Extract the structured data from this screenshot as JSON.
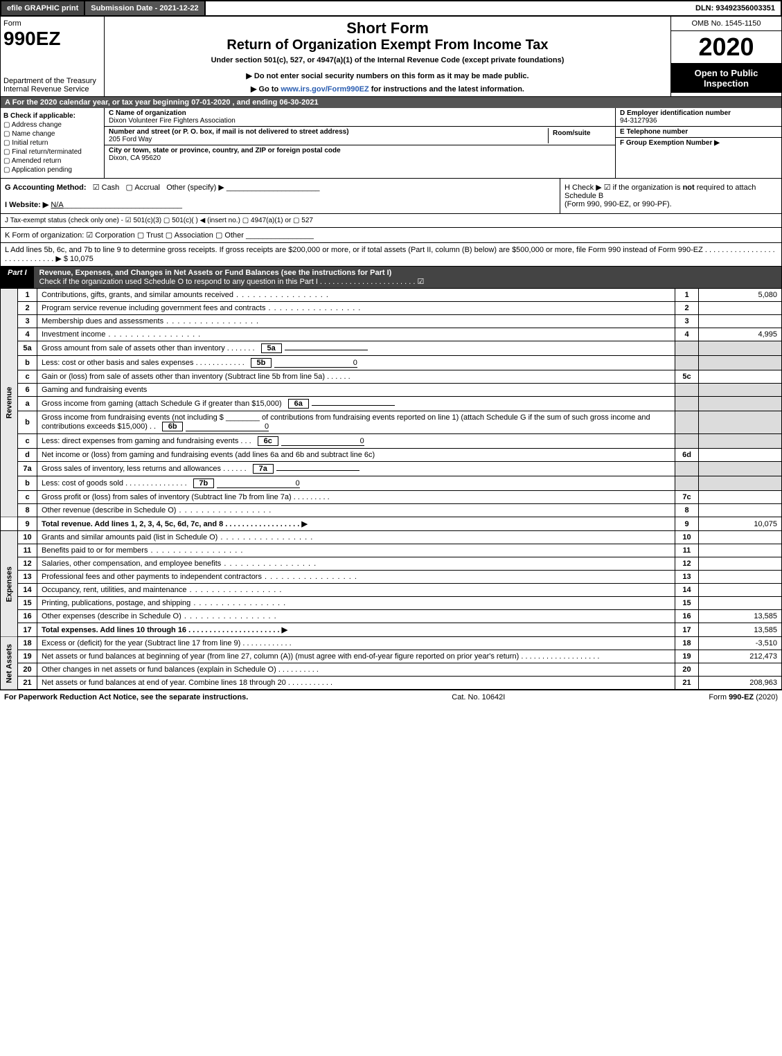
{
  "topbar": {
    "efile": "efile GRAPHIC print",
    "submission": "Submission Date - 2021-12-22",
    "dln_label": "DLN:",
    "dln": "93492356003351"
  },
  "header": {
    "form_word": "Form",
    "form_no": "990EZ",
    "dept": "Department of the Treasury",
    "irs": "Internal Revenue Service",
    "short": "Short Form",
    "title": "Return of Organization Exempt From Income Tax",
    "subtitle": "Under section 501(c), 527, or 4947(a)(1) of the Internal Revenue Code (except private foundations)",
    "donot": "▶ Do not enter social security numbers on this form as it may be made public.",
    "goto_pre": "▶ Go to ",
    "goto_link": "www.irs.gov/Form990EZ",
    "goto_post": " for instructions and the latest information.",
    "omb": "OMB No. 1545-1150",
    "year": "2020",
    "inspect1": "Open to Public",
    "inspect2": "Inspection"
  },
  "period": "A For the 2020 calendar year, or tax year beginning 07-01-2020 , and ending 06-30-2021",
  "boxB": {
    "heading": "B Check if applicable:",
    "opts": [
      "Address change",
      "Name change",
      "Initial return",
      "Final return/terminated",
      "Amended return",
      "Application pending"
    ]
  },
  "boxC": {
    "c_label": "C Name of organization",
    "name": "Dixon Volunteer Fire Fighters Association",
    "street_label": "Number and street (or P. O. box, if mail is not delivered to street address)",
    "street": "205 Ford Way",
    "room_label": "Room/suite",
    "city_label": "City or town, state or province, country, and ZIP or foreign postal code",
    "city": "Dixon, CA  95620"
  },
  "boxD": {
    "d_label": "D Employer identification number",
    "ein": "94-3127936",
    "e_label": "E Telephone number",
    "f_label": "F Group Exemption Number   ▶"
  },
  "lineG": {
    "label": "G Accounting Method:",
    "cash": "☑ Cash",
    "accrual": "▢ Accrual",
    "other": "Other (specify) ▶"
  },
  "lineH": {
    "text1": "H  Check ▶  ☑  if the organization is ",
    "not": "not",
    "text2": " required to attach Schedule B",
    "text3": "(Form 990, 990-EZ, or 990-PF)."
  },
  "lineI": {
    "label": "I Website: ▶",
    "value": "N/A"
  },
  "lineJ": "J Tax-exempt status (check only one) - ☑ 501(c)(3)  ▢ 501(c)(  ) ◀ (insert no.)  ▢ 4947(a)(1) or  ▢ 527",
  "lineK": "K Form of organization:   ☑ Corporation   ▢ Trust   ▢ Association   ▢ Other",
  "lineL": {
    "text": "L Add lines 5b, 6c, and 7b to line 9 to determine gross receipts. If gross receipts are $200,000 or more, or if total assets (Part II, column (B) below) are $500,000 or more, file Form 990 instead of Form 990-EZ  .  .  .  .  .  .  .  .  .  .  .  .  .  .  .  .  .  .  .  .  .  .  .  .  .  .  .  .  .  ▶ $",
    "amount": "10,075"
  },
  "part1": {
    "label": "Part I",
    "title": "Revenue, Expenses, and Changes in Net Assets or Fund Balances (see the instructions for Part I)",
    "check": "Check if the organization used Schedule O to respond to any question in this Part I  .  .  .  .  .  .  .  .  .  .  .  .  .  .  .  .  .  .  .  .  .  .  .  ☑"
  },
  "sidelabels": {
    "rev": "Revenue",
    "exp": "Expenses",
    "net": "Net Assets"
  },
  "lines": {
    "1": {
      "d": "Contributions, gifts, grants, and similar amounts received",
      "n": "1",
      "v": "5,080"
    },
    "2": {
      "d": "Program service revenue including government fees and contracts",
      "n": "2",
      "v": ""
    },
    "3": {
      "d": "Membership dues and assessments",
      "n": "3",
      "v": ""
    },
    "4": {
      "d": "Investment income",
      "n": "4",
      "v": "4,995"
    },
    "5a": {
      "d": "Gross amount from sale of assets other than inventory",
      "sb": "5a",
      "sv": ""
    },
    "5b": {
      "d": "Less: cost or other basis and sales expenses",
      "sb": "5b",
      "sv": "0"
    },
    "5c": {
      "d": "Gain or (loss) from sale of assets other than inventory (Subtract line 5b from line 5a)",
      "n": "5c",
      "v": ""
    },
    "6": {
      "d": "Gaming and fundraising events"
    },
    "6a": {
      "d": "Gross income from gaming (attach Schedule G if greater than $15,000)",
      "sb": "6a",
      "sv": ""
    },
    "6b": {
      "d1": "Gross income from fundraising events (not including $",
      "d2": "of contributions from fundraising events reported on line 1) (attach Schedule G if the sum of such gross income and contributions exceeds $15,000)",
      "sb": "6b",
      "sv": "0"
    },
    "6c": {
      "d": "Less: direct expenses from gaming and fundraising events",
      "sb": "6c",
      "sv": "0"
    },
    "6d": {
      "d": "Net income or (loss) from gaming and fundraising events (add lines 6a and 6b and subtract line 6c)",
      "n": "6d",
      "v": ""
    },
    "7a": {
      "d": "Gross sales of inventory, less returns and allowances",
      "sb": "7a",
      "sv": ""
    },
    "7b": {
      "d": "Less: cost of goods sold",
      "sb": "7b",
      "sv": "0"
    },
    "7c": {
      "d": "Gross profit or (loss) from sales of inventory (Subtract line 7b from line 7a)",
      "n": "7c",
      "v": ""
    },
    "8": {
      "d": "Other revenue (describe in Schedule O)",
      "n": "8",
      "v": ""
    },
    "9": {
      "d": "Total revenue. Add lines 1, 2, 3, 4, 5c, 6d, 7c, and 8   .  .  .  .  .  .  .  .  .  .  .  .  .  .  .  .  .  .  ▶",
      "n": "9",
      "v": "10,075",
      "bold": true
    },
    "10": {
      "d": "Grants and similar amounts paid (list in Schedule O)",
      "n": "10",
      "v": ""
    },
    "11": {
      "d": "Benefits paid to or for members",
      "n": "11",
      "v": ""
    },
    "12": {
      "d": "Salaries, other compensation, and employee benefits",
      "n": "12",
      "v": ""
    },
    "13": {
      "d": "Professional fees and other payments to independent contractors",
      "n": "13",
      "v": ""
    },
    "14": {
      "d": "Occupancy, rent, utilities, and maintenance",
      "n": "14",
      "v": ""
    },
    "15": {
      "d": "Printing, publications, postage, and shipping",
      "n": "15",
      "v": ""
    },
    "16": {
      "d": "Other expenses (describe in Schedule O)",
      "n": "16",
      "v": "13,585"
    },
    "17": {
      "d": "Total expenses. Add lines 10 through 16   .  .  .  .  .  .  .  .  .  .  .  .  .  .  .  .  .  .  .  .  .  .  ▶",
      "n": "17",
      "v": "13,585",
      "bold": true
    },
    "18": {
      "d": "Excess or (deficit) for the year (Subtract line 17 from line 9)",
      "n": "18",
      "v": "-3,510"
    },
    "19": {
      "d": "Net assets or fund balances at beginning of year (from line 27, column (A)) (must agree with end-of-year figure reported on prior year's return)",
      "n": "19",
      "v": "212,473"
    },
    "20": {
      "d": "Other changes in net assets or fund balances (explain in Schedule O)",
      "n": "20",
      "v": ""
    },
    "21": {
      "d": "Net assets or fund balances at end of year. Combine lines 18 through 20",
      "n": "21",
      "v": "208,963"
    }
  },
  "footer": {
    "left": "For Paperwork Reduction Act Notice, see the separate instructions.",
    "mid": "Cat. No. 10642I",
    "right_pre": "Form ",
    "right_form": "990-EZ",
    "right_post": " (2020)"
  },
  "colors": {
    "darkbar": "#555555",
    "black": "#000000",
    "shade": "#dcdcdc"
  }
}
